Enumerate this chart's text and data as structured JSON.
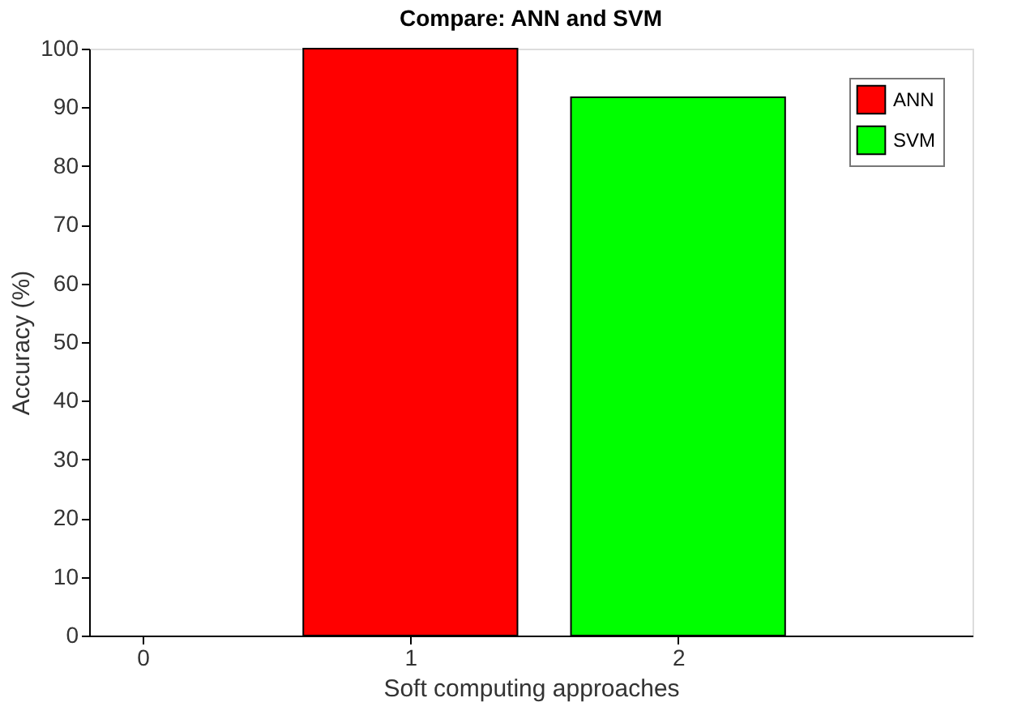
{
  "chart_data": {
    "type": "bar",
    "title": "Compare: ANN and SVM",
    "xlabel": "Soft computing approaches",
    "ylabel": "Accuracy (%)",
    "series": [
      {
        "name": "ANN",
        "color": "#ff0000",
        "x": [
          1
        ],
        "values": [
          100
        ]
      },
      {
        "name": "SVM",
        "color": "#00ff00",
        "x": [
          2
        ],
        "values": [
          91.7
        ]
      }
    ],
    "xlim": [
      -0.2,
      3.1
    ],
    "xticks": [
      0,
      1,
      2
    ],
    "ylim": [
      0,
      100
    ],
    "yticks": [
      0,
      10,
      20,
      30,
      40,
      50,
      60,
      70,
      80,
      90,
      100
    ],
    "grid": false,
    "legend": "top right"
  }
}
